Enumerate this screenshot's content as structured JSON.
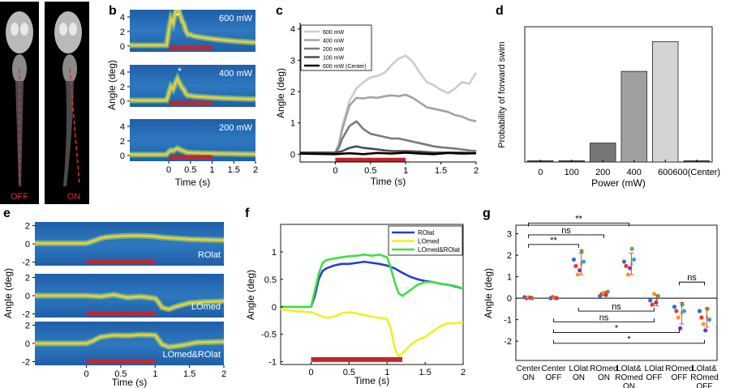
{
  "figure": {
    "panel_letters": [
      "a",
      "b",
      "c",
      "d",
      "e",
      "f",
      "g"
    ]
  },
  "colors": {
    "stim_bar": "#c0272d",
    "heat_bg": "#1f5fa8",
    "heat_trace": "#f0c83a",
    "heat_halo": "#7fd07a",
    "roilat": "#1f3fd8",
    "lomed": "#f2ef1e",
    "both": "#3fe03f",
    "mask_red": "#e0302a"
  },
  "chart_data": [
    {
      "panel": "a",
      "type": "image",
      "labels": [
        "OFF",
        "ON"
      ]
    },
    {
      "panel": "b",
      "type": "heatmap",
      "ylabel": "Angle (deg)",
      "xlabel": "Time (s)",
      "xlim": [
        -0.9,
        2
      ],
      "xticks": [
        0,
        0.5,
        1,
        1.5,
        2
      ],
      "xtick_labels": [
        "0",
        "0.5",
        "1",
        "1.5",
        "2"
      ],
      "yticks": [
        0,
        2,
        4
      ],
      "ytick_labels": [
        "0",
        "2",
        "4"
      ],
      "ylim": [
        -0.8,
        5
      ],
      "subplots": [
        {
          "label": "600 mW",
          "star": true,
          "star_t": 0.2,
          "amp": 3.4,
          "sustain": 1.6
        },
        {
          "label": "400 mW",
          "star": true,
          "star_t": 0.25,
          "amp": 2.0,
          "sustain": 0.7
        },
        {
          "label": "200 mW",
          "star": false,
          "amp": 0.5,
          "sustain": 0.3
        }
      ],
      "stim": [
        0,
        1
      ]
    },
    {
      "panel": "c",
      "type": "line",
      "xlabel": "Time (s)",
      "ylabel": "Angle (deg)",
      "xlim": [
        -0.5,
        2
      ],
      "ylim": [
        -0.25,
        4.2
      ],
      "xticks": [
        0,
        0.5,
        1,
        1.5,
        2
      ],
      "xtick_labels": [
        "0",
        "0.5",
        "1",
        "1.5",
        "2"
      ],
      "yticks": [
        0,
        1,
        2,
        3,
        4
      ],
      "ytick_labels": [
        "0",
        "1",
        "2",
        "3",
        "4"
      ],
      "legend": "top-left",
      "stim": [
        0,
        1
      ],
      "series": [
        {
          "name": "600 mW",
          "color": "#cccccc",
          "x": [
            -0.5,
            0,
            0.05,
            0.1,
            0.2,
            0.3,
            0.4,
            0.5,
            0.6,
            0.7,
            0.8,
            0.9,
            1.0,
            1.1,
            1.2,
            1.3,
            1.4,
            1.5,
            1.6,
            1.7,
            1.8,
            1.9,
            2.0
          ],
          "y": [
            0.05,
            0.05,
            0.3,
            0.9,
            1.7,
            2.1,
            2.3,
            2.45,
            2.5,
            2.6,
            2.85,
            3.05,
            3.15,
            2.95,
            2.6,
            2.3,
            2.2,
            2.05,
            1.95,
            2.1,
            2.3,
            2.25,
            2.6
          ]
        },
        {
          "name": "400 mW",
          "color": "#a3a3a3",
          "x": [
            -0.5,
            0,
            0.05,
            0.1,
            0.2,
            0.3,
            0.4,
            0.5,
            0.6,
            0.7,
            0.8,
            0.9,
            1.0,
            1.1,
            1.2,
            1.3,
            1.4,
            1.5,
            1.6,
            1.7,
            1.8,
            1.9,
            2.0
          ],
          "y": [
            0.05,
            0.05,
            0.3,
            0.8,
            1.55,
            1.8,
            1.78,
            1.82,
            1.8,
            1.85,
            1.88,
            1.85,
            1.9,
            1.8,
            1.65,
            1.5,
            1.45,
            1.4,
            1.35,
            1.25,
            1.2,
            1.1,
            1.05
          ]
        },
        {
          "name": "200 mW",
          "color": "#7a7a7a",
          "x": [
            -0.5,
            0,
            0.05,
            0.1,
            0.2,
            0.3,
            0.4,
            0.5,
            0.6,
            0.7,
            0.8,
            0.9,
            1.0,
            1.1,
            1.2,
            1.3,
            1.4,
            1.5,
            1.6,
            1.7,
            1.8,
            1.9,
            2.0
          ],
          "y": [
            0.05,
            0.05,
            0.2,
            0.5,
            0.9,
            1.05,
            0.8,
            0.65,
            0.6,
            0.55,
            0.5,
            0.5,
            0.45,
            0.4,
            0.35,
            0.3,
            0.25,
            0.22,
            0.2,
            0.18,
            0.15,
            0.12,
            0.1
          ]
        },
        {
          "name": "100 mW",
          "color": "#4d4d4d",
          "x": [
            -0.5,
            0,
            0.1,
            0.2,
            0.3,
            0.4,
            0.5,
            0.6,
            0.7,
            0.8,
            0.9,
            1.0,
            1.2,
            1.4,
            1.6,
            1.8,
            2.0
          ],
          "y": [
            0.05,
            0.05,
            0.1,
            0.2,
            0.25,
            0.2,
            0.18,
            0.15,
            0.12,
            0.1,
            0.1,
            0.1,
            0.08,
            0.05,
            0.05,
            0.05,
            0.03
          ]
        },
        {
          "name": "600 mW (Center)",
          "color": "#000000",
          "x": [
            -0.5,
            0,
            0.2,
            0.4,
            0.6,
            0.8,
            1.0,
            1.2,
            1.4,
            1.6,
            1.8,
            2.0
          ],
          "y": [
            0.02,
            0.0,
            0.03,
            0.0,
            0.04,
            0.02,
            0.05,
            0.02,
            0.0,
            0.04,
            0.02,
            0.03
          ]
        }
      ]
    },
    {
      "panel": "d",
      "type": "bar",
      "xlabel": "Power (mW)",
      "ylabel": "Probability of forward swim",
      "ylim": [
        0,
        100
      ],
      "categories": [
        "0",
        "100",
        "200",
        "400",
        "600",
        "600(Center)"
      ],
      "values": [
        0,
        0,
        14,
        67,
        89,
        0
      ],
      "bar_colors": [
        "#444444",
        "#444444",
        "#777777",
        "#a0a0a0",
        "#d3d3d3",
        "#444444"
      ]
    },
    {
      "panel": "e",
      "type": "heatmap",
      "ylabel": "Angle (deg)",
      "xlabel": "Time (s)",
      "xlim": [
        -0.75,
        2
      ],
      "xticks": [
        0,
        0.5,
        1,
        1.5,
        2
      ],
      "xtick_labels": [
        "0",
        "0.5",
        "1",
        "1.5",
        "2"
      ],
      "yticks": [
        -2,
        0,
        2
      ],
      "ytick_labels": [
        "-2",
        "0",
        "2"
      ],
      "ylim": [
        -2.4,
        2.4
      ],
      "subplots": [
        {
          "label": "ROlat",
          "trace_x": [
            -0.75,
            0,
            0.1,
            0.2,
            0.3,
            0.5,
            0.7,
            0.9,
            1.0,
            1.1,
            1.3,
            1.5,
            1.7,
            2.0
          ],
          "trace_y": [
            0.05,
            0.05,
            0.3,
            0.6,
            0.75,
            0.85,
            0.9,
            0.85,
            0.8,
            0.7,
            0.6,
            0.5,
            0.45,
            0.4
          ]
        },
        {
          "label": "LOmed",
          "trace_x": [
            -0.75,
            0,
            0.2,
            0.4,
            0.6,
            0.8,
            1.0,
            1.05,
            1.1,
            1.2,
            1.3,
            1.5,
            1.7,
            2.0
          ],
          "trace_y": [
            0,
            0,
            -0.1,
            0.1,
            -0.2,
            -0.1,
            -0.3,
            -0.7,
            -1.3,
            -1.5,
            -1.2,
            -0.8,
            -0.7,
            -0.6
          ]
        },
        {
          "label": "LOmed&ROlat",
          "trace_x": [
            -0.75,
            0,
            0.1,
            0.2,
            0.4,
            0.6,
            0.8,
            1.0,
            1.05,
            1.1,
            1.2,
            1.4,
            1.6,
            2.0
          ],
          "trace_y": [
            0,
            0,
            0.3,
            0.7,
            0.9,
            0.85,
            0.95,
            0.9,
            0.4,
            -0.1,
            -0.4,
            -0.2,
            0.1,
            0.2
          ]
        }
      ],
      "stim": [
        0,
        1
      ]
    },
    {
      "panel": "f",
      "type": "line",
      "xlabel": "Time (s)",
      "ylabel": "Angle (deg)",
      "xlim": [
        -0.4,
        2
      ],
      "ylim": [
        -1.05,
        1.5
      ],
      "xticks": [
        0,
        0.5,
        1,
        1.5,
        2
      ],
      "xtick_labels": [
        "0",
        "0.5",
        "1",
        "1.5",
        "2"
      ],
      "yticks": [
        -1,
        -0.5,
        0,
        0.5,
        1
      ],
      "ytick_labels": [
        "-1",
        "-0.5",
        "0",
        "0.5",
        "1"
      ],
      "legend": "top-right",
      "stim": [
        0,
        1.2
      ],
      "series": [
        {
          "name": "ROlat",
          "color": "#1f3fd8",
          "x": [
            -0.4,
            0,
            0.05,
            0.1,
            0.15,
            0.2,
            0.3,
            0.4,
            0.5,
            0.6,
            0.7,
            0.8,
            0.9,
            1.0,
            1.1,
            1.2,
            1.3,
            1.4,
            1.5,
            1.6,
            1.7,
            1.8,
            1.9,
            2.0
          ],
          "y": [
            0,
            0,
            0.2,
            0.5,
            0.65,
            0.7,
            0.75,
            0.78,
            0.78,
            0.8,
            0.82,
            0.8,
            0.78,
            0.75,
            0.7,
            0.62,
            0.55,
            0.5,
            0.47,
            0.45,
            0.42,
            0.4,
            0.37,
            0.33
          ]
        },
        {
          "name": "LOmed",
          "color": "#f2ef1e",
          "x": [
            -0.4,
            -0.2,
            0,
            0.1,
            0.2,
            0.3,
            0.4,
            0.5,
            0.6,
            0.7,
            0.8,
            0.9,
            1.0,
            1.05,
            1.1,
            1.15,
            1.2,
            1.3,
            1.4,
            1.5,
            1.6,
            1.7,
            1.8,
            1.9,
            2.0
          ],
          "y": [
            -0.05,
            -0.08,
            -0.1,
            -0.15,
            -0.2,
            -0.18,
            -0.12,
            -0.1,
            -0.12,
            -0.15,
            -0.18,
            -0.2,
            -0.22,
            -0.4,
            -0.75,
            -0.9,
            -0.85,
            -0.7,
            -0.6,
            -0.55,
            -0.45,
            -0.35,
            -0.3,
            -0.3,
            -0.28
          ]
        },
        {
          "name": "LOmed&ROlat",
          "color": "#3fe03f",
          "x": [
            -0.4,
            0,
            0.05,
            0.1,
            0.15,
            0.2,
            0.3,
            0.4,
            0.5,
            0.6,
            0.7,
            0.8,
            0.9,
            1.0,
            1.05,
            1.1,
            1.15,
            1.2,
            1.3,
            1.4,
            1.5,
            1.6,
            1.7,
            1.8,
            1.9,
            2.0
          ],
          "y": [
            0,
            0,
            0.3,
            0.6,
            0.8,
            0.85,
            0.88,
            0.9,
            0.92,
            0.93,
            0.95,
            0.93,
            0.95,
            0.9,
            0.7,
            0.45,
            0.25,
            0.2,
            0.3,
            0.4,
            0.45,
            0.45,
            0.42,
            0.4,
            0.38,
            0.33
          ]
        }
      ]
    },
    {
      "panel": "g",
      "type": "scatter",
      "ylabel": "Angle (deg)",
      "ylim": [
        -2.9,
        3.4
      ],
      "yticks": [
        -2,
        -1,
        0,
        1,
        2,
        3
      ],
      "ytick_labels": [
        "-2",
        "-1",
        "0",
        "1",
        "2",
        "3"
      ],
      "categories": [
        [
          "Center",
          "ON"
        ],
        [
          "Center",
          "OFF"
        ],
        [
          "LOlat",
          "ON"
        ],
        [
          "ROmed",
          "ON"
        ],
        [
          "LOlat&",
          "ROmed",
          "ON"
        ],
        [
          "LOlat",
          "OFF"
        ],
        [
          "ROmed",
          "OFF"
        ],
        [
          "LOlat&",
          "ROmed",
          "OFF"
        ]
      ],
      "point_colors": [
        "#2f6fd6",
        "#e63a2a",
        "#f0a020",
        "#7a3aa8",
        "#4fb34a",
        "#2aa6d6"
      ],
      "groups": [
        {
          "values": [
            0.05,
            0.0,
            0.05,
            0.02,
            0.0
          ],
          "mean": 0.02,
          "err": 0.05
        },
        {
          "values": [
            0.0,
            0.05,
            0.02,
            0.0
          ],
          "mean": 0.02,
          "err": 0.04
        },
        {
          "values": [
            1.8,
            1.5,
            1.1,
            1.3,
            2.2,
            1.7
          ],
          "mean": 1.6,
          "err": 0.5
        },
        {
          "values": [
            0.1,
            0.2,
            0.25,
            0.15,
            0.3
          ],
          "mean": 0.2,
          "err": 0.1
        },
        {
          "values": [
            1.7,
            1.5,
            1.1,
            1.4,
            2.3,
            1.8
          ],
          "mean": 1.6,
          "err": 0.5
        },
        {
          "values": [
            -0.1,
            -0.3,
            0.2,
            -0.2,
            0.1
          ],
          "mean": -0.1,
          "err": 0.25
        },
        {
          "values": [
            -0.4,
            -0.6,
            -0.9,
            -1.4,
            -0.3,
            -0.6
          ],
          "mean": -0.7,
          "err": 0.5
        },
        {
          "values": [
            -0.6,
            -0.9,
            -1.2,
            -1.5,
            -0.5,
            -1.0
          ],
          "mean": -0.9,
          "err": 0.45
        }
      ],
      "significance": [
        {
          "a": 0,
          "b": 2,
          "label": "**",
          "side": "top",
          "level": 2.5
        },
        {
          "a": 0,
          "b": 3,
          "label": "ns",
          "side": "top",
          "level": 2.95
        },
        {
          "a": 0,
          "b": 4,
          "label": "**",
          "side": "top",
          "level": 3.5
        },
        {
          "a": 6,
          "b": 7,
          "label": "ns",
          "side": "top",
          "level": 0.75
        },
        {
          "a": 2,
          "b": 5,
          "label": "ns",
          "side": "bottom",
          "level": -0.6
        },
        {
          "a": 1,
          "b": 5,
          "label": "ns",
          "side": "bottom",
          "level": -1.1
        },
        {
          "a": 1,
          "b": 6,
          "label": "*",
          "side": "bottom",
          "level": -1.6
        },
        {
          "a": 1,
          "b": 7,
          "label": "*",
          "side": "bottom",
          "level": -2.1
        }
      ]
    }
  ]
}
